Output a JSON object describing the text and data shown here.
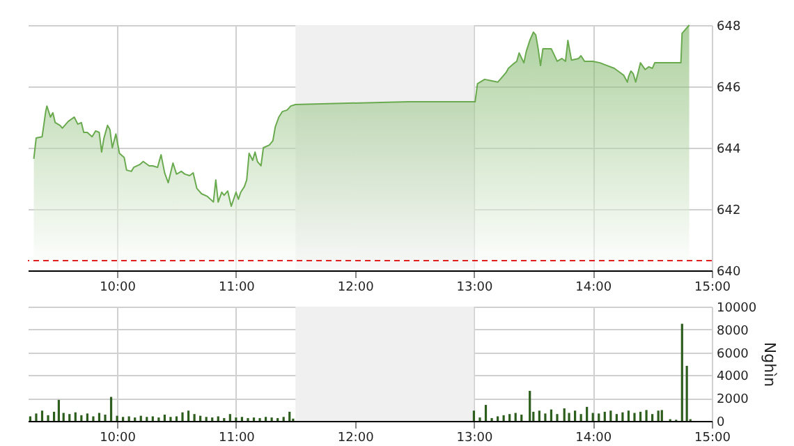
{
  "chart_data": [
    {
      "type": "area",
      "x": [
        9.3,
        9.32,
        9.37,
        9.4,
        9.41,
        9.44,
        9.46,
        9.48,
        9.52,
        9.54,
        9.59,
        9.64,
        9.67,
        9.7,
        9.72,
        9.75,
        9.79,
        9.82,
        9.85,
        9.87,
        9.89,
        9.92,
        9.94,
        9.96,
        9.99,
        10.02,
        10.06,
        10.08,
        10.12,
        10.14,
        10.19,
        10.22,
        10.27,
        10.3,
        10.34,
        10.37,
        10.4,
        10.43,
        10.47,
        10.5,
        10.54,
        10.57,
        10.61,
        10.64,
        10.67,
        10.69,
        10.71,
        10.76,
        10.81,
        10.83,
        10.85,
        10.88,
        10.9,
        10.93,
        10.96,
        11.0,
        11.02,
        11.04,
        11.07,
        11.09,
        11.11,
        11.14,
        11.16,
        11.18,
        11.21,
        11.23,
        11.28,
        11.31,
        11.33,
        11.36,
        11.39,
        11.43,
        11.46,
        11.5,
        12.45,
        13.01,
        13.03,
        13.09,
        13.15,
        13.2,
        13.23,
        13.27,
        13.29,
        13.33,
        13.36,
        13.38,
        13.42,
        13.44,
        13.47,
        13.5,
        13.52,
        13.54,
        13.56,
        13.58,
        13.65,
        13.7,
        13.74,
        13.77,
        13.79,
        13.82,
        13.88,
        13.9,
        13.93,
        14.0,
        14.06,
        14.12,
        14.18,
        14.23,
        14.26,
        14.29,
        14.3,
        14.32,
        14.34,
        14.36,
        14.38,
        14.4,
        14.44,
        14.47,
        14.5,
        14.52,
        14.74,
        14.75,
        14.81
      ],
      "series": [
        {
          "color": "#6aaa4f",
          "values": [
            643.64,
            644.32,
            644.36,
            645.18,
            645.36,
            645.0,
            645.14,
            644.82,
            644.73,
            644.64,
            644.86,
            645.0,
            644.77,
            644.82,
            644.5,
            644.5,
            644.36,
            644.55,
            644.5,
            643.86,
            644.32,
            644.73,
            644.59,
            644.0,
            644.45,
            643.82,
            643.68,
            643.27,
            643.23,
            643.36,
            643.45,
            643.55,
            643.41,
            643.41,
            643.36,
            643.77,
            643.18,
            642.86,
            643.5,
            643.14,
            643.23,
            643.14,
            643.09,
            643.18,
            642.68,
            642.59,
            642.5,
            642.41,
            642.23,
            642.95,
            642.23,
            642.55,
            642.45,
            642.59,
            642.09,
            642.55,
            642.32,
            642.55,
            642.73,
            642.95,
            643.82,
            643.59,
            643.86,
            643.55,
            643.41,
            644.0,
            644.09,
            644.23,
            644.68,
            645.0,
            645.18,
            645.23,
            645.36,
            645.41,
            645.5,
            645.5,
            646.09,
            646.23,
            646.18,
            646.14,
            646.27,
            646.45,
            646.59,
            646.73,
            646.82,
            647.09,
            646.77,
            647.14,
            647.5,
            647.77,
            647.68,
            647.23,
            646.68,
            647.23,
            647.23,
            646.82,
            646.91,
            646.82,
            647.5,
            646.86,
            646.91,
            647.0,
            646.82,
            646.82,
            646.77,
            646.68,
            646.59,
            646.45,
            646.36,
            646.14,
            646.32,
            646.5,
            646.41,
            646.14,
            646.45,
            646.77,
            646.55,
            646.64,
            646.59,
            646.77,
            646.77,
            647.73,
            648.0
          ]
        }
      ],
      "xlim": [
        9.25,
        15
      ],
      "xticks": [
        {
          "value": 10,
          "label": "10:00"
        },
        {
          "value": 11,
          "label": "11:00"
        },
        {
          "value": 12,
          "label": "12:00"
        },
        {
          "value": 13,
          "label": "13:00"
        },
        {
          "value": 14,
          "label": "14:00"
        },
        {
          "value": 15,
          "label": "15:00"
        }
      ],
      "ylim": [
        640,
        648
      ],
      "yticks": [
        640,
        642,
        644,
        646,
        648
      ],
      "grid": true,
      "ref_lines": [
        {
          "axis": "y",
          "value": 640.32,
          "color": "#e02020",
          "line_style": "dashed"
        }
      ],
      "bands": [
        {
          "axis": "x",
          "from": 11.5,
          "to": 13,
          "color": "#f0f0f0"
        }
      ]
    },
    {
      "type": "bar",
      "x": [
        9.27,
        9.32,
        9.37,
        9.42,
        9.47,
        9.51,
        9.55,
        9.6,
        9.65,
        9.7,
        9.75,
        9.8,
        9.85,
        9.9,
        9.95,
        10.0,
        10.05,
        10.1,
        10.15,
        10.2,
        10.25,
        10.3,
        10.35,
        10.4,
        10.45,
        10.5,
        10.55,
        10.6,
        10.65,
        10.7,
        10.75,
        10.8,
        10.85,
        10.9,
        10.95,
        11.0,
        11.05,
        11.1,
        11.15,
        11.2,
        11.25,
        11.3,
        11.35,
        11.4,
        11.45,
        11.48,
        13.0,
        13.05,
        13.1,
        13.15,
        13.2,
        13.25,
        13.3,
        13.35,
        13.4,
        13.47,
        13.5,
        13.55,
        13.6,
        13.65,
        13.7,
        13.76,
        13.8,
        13.85,
        13.9,
        13.95,
        14.0,
        14.05,
        14.1,
        14.15,
        14.2,
        14.25,
        14.3,
        14.35,
        14.4,
        14.45,
        14.5,
        14.55,
        14.58,
        14.65,
        14.7,
        14.75,
        14.79,
        14.82
      ],
      "values": [
        400,
        650,
        900,
        500,
        800,
        1840,
        700,
        600,
        750,
        500,
        650,
        400,
        700,
        550,
        2100,
        450,
        350,
        400,
        300,
        450,
        350,
        400,
        300,
        550,
        350,
        400,
        750,
        900,
        600,
        450,
        350,
        300,
        400,
        250,
        600,
        300,
        350,
        250,
        300,
        250,
        350,
        300,
        250,
        350,
        800,
        200,
        900,
        300,
        1400,
        250,
        400,
        500,
        600,
        700,
        550,
        2630,
        800,
        900,
        650,
        1000,
        600,
        1100,
        700,
        900,
        600,
        1230,
        700,
        650,
        800,
        900,
        600,
        750,
        900,
        700,
        800,
        950,
        600,
        900,
        950,
        150,
        100,
        8500,
        4820,
        150
      ],
      "color": "#2e5e1e",
      "ylabel": "Nghìn",
      "xlim": [
        9.25,
        15
      ],
      "xticks": [
        {
          "value": 10,
          "label": "10:00"
        },
        {
          "value": 11,
          "label": "11:00"
        },
        {
          "value": 12,
          "label": "12:00"
        },
        {
          "value": 13,
          "label": "13:00"
        },
        {
          "value": 14,
          "label": "14:00"
        },
        {
          "value": 15,
          "label": "15:00"
        }
      ],
      "ylim": [
        0,
        10000
      ],
      "yticks": [
        0,
        2000,
        4000,
        6000,
        8000,
        10000
      ],
      "grid": true,
      "bands": [
        {
          "axis": "x",
          "from": 11.5,
          "to": 13,
          "color": "#f0f0f0"
        }
      ]
    }
  ]
}
